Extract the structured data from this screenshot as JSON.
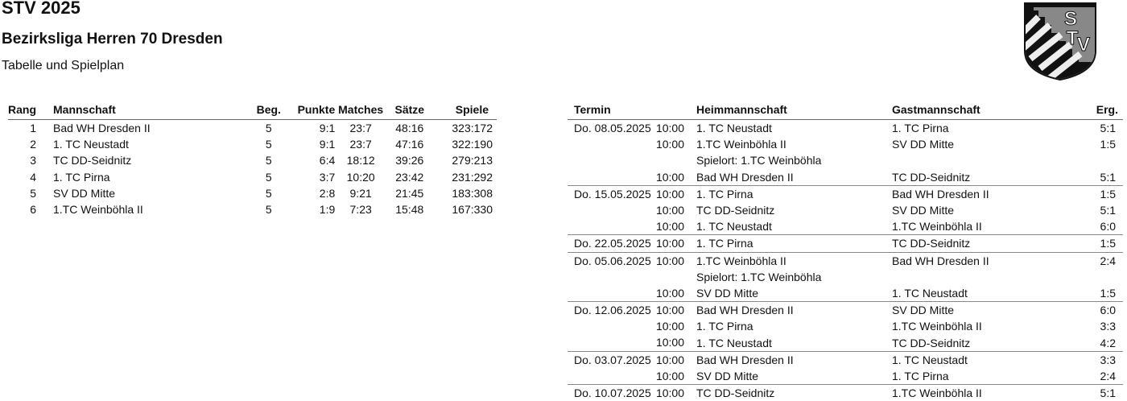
{
  "header": {
    "title": "STV 2025",
    "league": "Bezirksliga Herren 70 Dresden",
    "subtitle": "Tabelle und Spielplan",
    "logo_text": "STV"
  },
  "standings": {
    "columns": [
      "Rang",
      "Mannschaft",
      "Beg.",
      "Punkte",
      "Matches",
      "Sätze",
      "Spiele"
    ],
    "rows": [
      [
        "1",
        "Bad WH Dresden II",
        "5",
        "9:1",
        "23:7",
        "48:16",
        "323:172"
      ],
      [
        "2",
        "1. TC Neustadt",
        "5",
        "9:1",
        "23:7",
        "47:16",
        "322:190"
      ],
      [
        "3",
        "TC DD-Seidnitz",
        "5",
        "6:4",
        "18:12",
        "39:26",
        "279:213"
      ],
      [
        "4",
        "1. TC Pirna",
        "5",
        "3:7",
        "10:20",
        "23:42",
        "231:292"
      ],
      [
        "5",
        "SV DD Mitte",
        "5",
        "2:8",
        "9:21",
        "21:45",
        "183:308"
      ],
      [
        "6",
        "1.TC Weinböhla II",
        "5",
        "1:9",
        "7:23",
        "15:48",
        "167:330"
      ]
    ]
  },
  "schedule": {
    "columns": [
      "Termin",
      "Heimmannschaft",
      "Gastmannschaft",
      "Erg."
    ],
    "rows": [
      {
        "date": "Do. 08.05.2025",
        "time": "10:00",
        "home": "1. TC Neustadt",
        "guest": "1. TC Pirna",
        "result": "5:1"
      },
      {
        "date": "",
        "time": "10:00",
        "home": "1.TC Weinböhla II",
        "guest": "SV DD Mitte",
        "result": "1:5"
      },
      {
        "date": "",
        "time": "",
        "home": "Spielort: 1.TC Weinböhla",
        "guest": "",
        "result": ""
      },
      {
        "date": "",
        "time": "10:00",
        "home": "Bad WH Dresden II",
        "guest": "TC DD-Seidnitz",
        "result": "5:1"
      },
      {
        "date": "Do. 15.05.2025",
        "time": "10:00",
        "home": "1. TC Pirna",
        "guest": "Bad WH Dresden II",
        "result": "1:5"
      },
      {
        "date": "",
        "time": "10:00",
        "home": "TC DD-Seidnitz",
        "guest": "SV DD Mitte",
        "result": "5:1"
      },
      {
        "date": "",
        "time": "10:00",
        "home": "1. TC Neustadt",
        "guest": "1.TC Weinböhla II",
        "result": "6:0"
      },
      {
        "date": "Do. 22.05.2025",
        "time": "10:00",
        "home": "1. TC Pirna",
        "guest": "TC DD-Seidnitz",
        "result": "1:5"
      },
      {
        "date": "Do. 05.06.2025",
        "time": "10:00",
        "home": "1.TC Weinböhla II",
        "guest": "Bad WH Dresden II",
        "result": "2:4"
      },
      {
        "date": "",
        "time": "",
        "home": "Spielort: 1.TC Weinböhla",
        "guest": "",
        "result": ""
      },
      {
        "date": "",
        "time": "10:00",
        "home": "SV DD Mitte",
        "guest": "1. TC Neustadt",
        "result": "1:5"
      },
      {
        "date": "Do. 12.06.2025",
        "time": "10:00",
        "home": "Bad WH Dresden II",
        "guest": "SV DD Mitte",
        "result": "6:0"
      },
      {
        "date": "",
        "time": "10:00",
        "home": "1. TC Pirna",
        "guest": "1.TC Weinböhla II",
        "result": "3:3"
      },
      {
        "date": "",
        "time": "10:00",
        "home": "1. TC Neustadt",
        "guest": "TC DD-Seidnitz",
        "result": "4:2"
      },
      {
        "date": "Do. 03.07.2025",
        "time": "10:00",
        "home": "Bad WH Dresden II",
        "guest": "1. TC Neustadt",
        "result": "3:3"
      },
      {
        "date": "",
        "time": "10:00",
        "home": "SV DD Mitte",
        "guest": "1. TC Pirna",
        "result": "2:4"
      },
      {
        "date": "Do. 10.07.2025",
        "time": "10:00",
        "home": "TC DD-Seidnitz",
        "guest": "1.TC Weinböhla II",
        "result": "5:1"
      }
    ]
  }
}
